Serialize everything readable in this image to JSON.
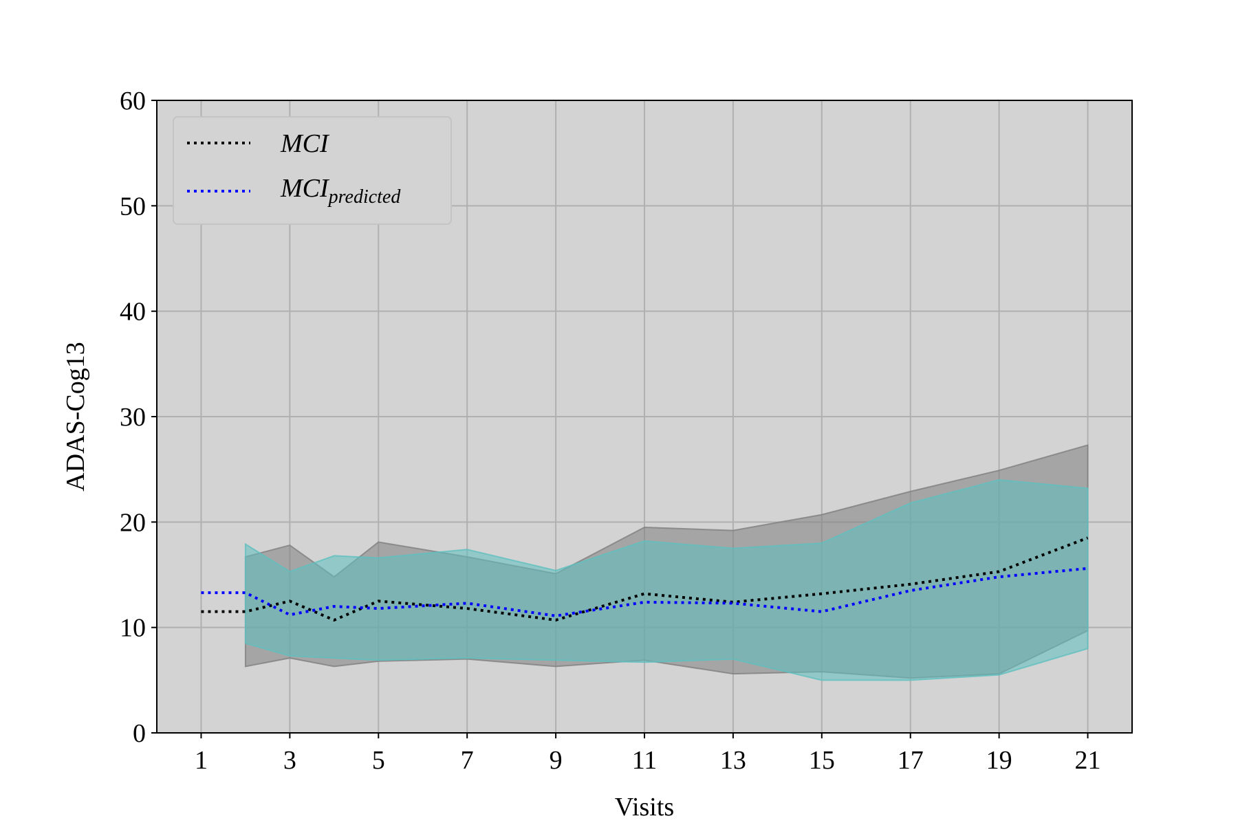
{
  "chart_data": {
    "type": "line",
    "xlabel": "Visits",
    "ylabel": "ADAS-Cog13",
    "xlim": [
      0,
      22
    ],
    "ylim": [
      0,
      60
    ],
    "xticks": [
      1,
      3,
      5,
      7,
      9,
      11,
      13,
      15,
      17,
      19,
      21
    ],
    "yticks": [
      0,
      10,
      20,
      30,
      40,
      50,
      60
    ],
    "grid": true,
    "legend_position": "top-left",
    "plot_background": "#d3d3d3",
    "series": [
      {
        "name": "MCI",
        "style": "dotted",
        "color": "#000000",
        "x": [
          1,
          2,
          3,
          4,
          5,
          7,
          9,
          11,
          13,
          15,
          17,
          19,
          21
        ],
        "y": [
          11.5,
          11.5,
          12.5,
          10.7,
          12.5,
          11.8,
          10.7,
          13.2,
          12.4,
          13.2,
          14.1,
          15.3,
          18.5
        ]
      },
      {
        "name": "MCI",
        "name_subscript": "predicted",
        "style": "dotted",
        "color": "#0000ff",
        "x": [
          1,
          2,
          3,
          4,
          5,
          7,
          9,
          11,
          13,
          15,
          17,
          19,
          21
        ],
        "y": [
          13.3,
          13.3,
          11.2,
          12.0,
          11.8,
          12.3,
          11.1,
          12.4,
          12.3,
          11.5,
          13.5,
          14.8,
          15.6
        ]
      }
    ],
    "bands": [
      {
        "of": "MCI",
        "color": "#808080",
        "opacity": 0.55,
        "x": [
          2,
          3,
          4,
          5,
          7,
          9,
          11,
          13,
          15,
          17,
          19,
          21
        ],
        "upper": [
          16.7,
          17.8,
          14.8,
          18.1,
          16.7,
          15.1,
          19.5,
          19.2,
          20.7,
          22.9,
          24.9,
          27.3
        ],
        "lower": [
          6.3,
          7.1,
          6.3,
          6.8,
          7.0,
          6.3,
          6.9,
          5.6,
          5.8,
          5.2,
          5.6,
          9.7
        ]
      },
      {
        "of": "MCI predicted",
        "color": "#5fbfbf",
        "opacity": 0.55,
        "x": [
          2,
          3,
          4,
          5,
          7,
          9,
          11,
          13,
          15,
          17,
          19,
          21
        ],
        "upper": [
          17.9,
          15.3,
          16.8,
          16.6,
          17.4,
          15.4,
          18.2,
          17.5,
          18.0,
          21.8,
          24.0,
          23.2
        ],
        "lower": [
          8.5,
          7.3,
          7.1,
          6.9,
          7.1,
          6.9,
          6.7,
          7.0,
          5.0,
          5.0,
          5.5,
          8.0
        ]
      }
    ]
  }
}
